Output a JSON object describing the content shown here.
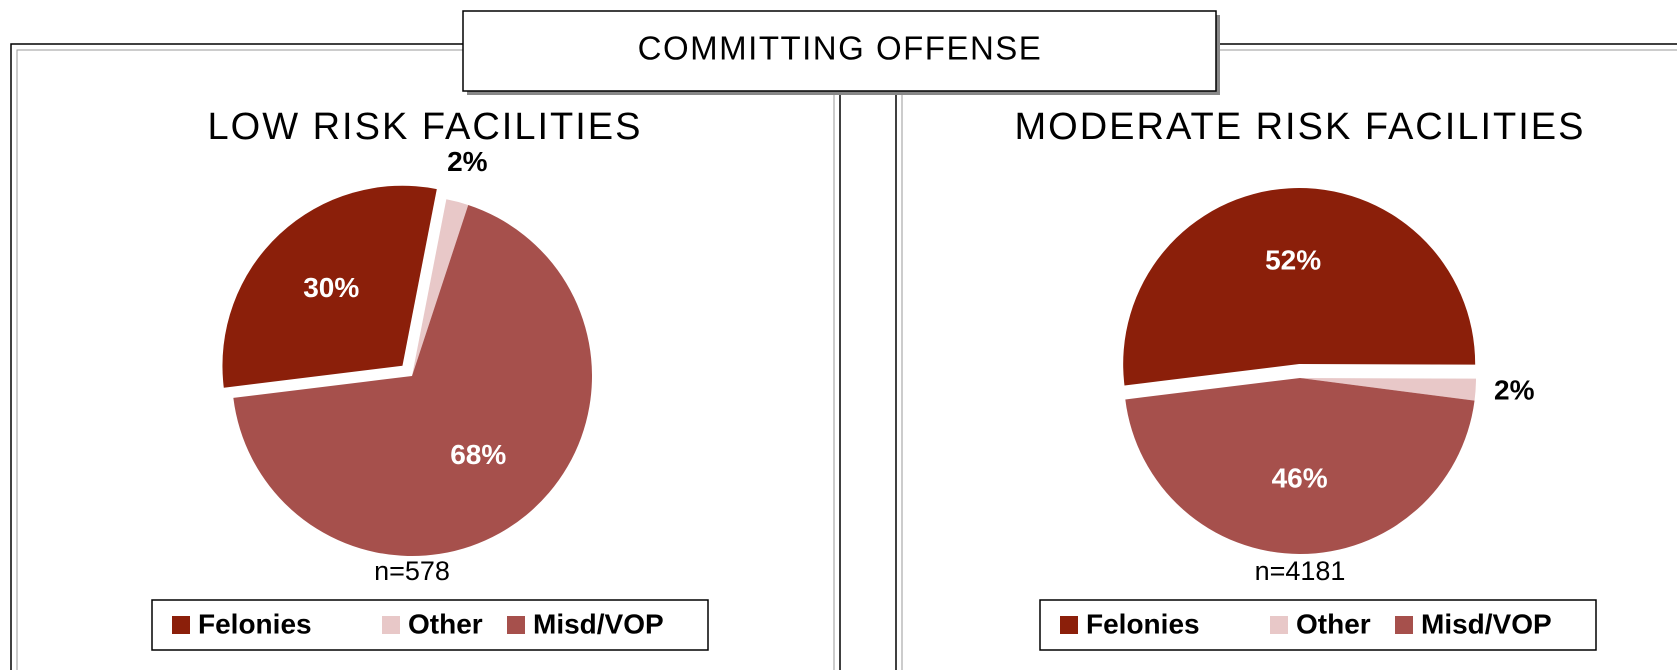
{
  "title": "COMMITTING OFFENSE",
  "chart_data": [
    {
      "type": "pie",
      "title": "LOW RISK FACILITIES",
      "categories": [
        "Felonies",
        "Other",
        "Misd/VOP"
      ],
      "values": [
        30,
        2,
        68
      ],
      "value_labels": [
        "30%",
        "2%",
        "68%"
      ],
      "colors": [
        "#8b1f0a",
        "#e8c8c8",
        "#a6504c"
      ],
      "note": "n=578"
    },
    {
      "type": "pie",
      "title": "MODERATE RISK FACILITIES",
      "categories": [
        "Felonies",
        "Other",
        "Misd/VOP"
      ],
      "values": [
        52,
        2,
        46
      ],
      "value_labels": [
        "52%",
        "2%",
        "46%"
      ],
      "colors": [
        "#8b1f0a",
        "#e8c8c8",
        "#a6504c"
      ],
      "note": "n=4181"
    }
  ]
}
